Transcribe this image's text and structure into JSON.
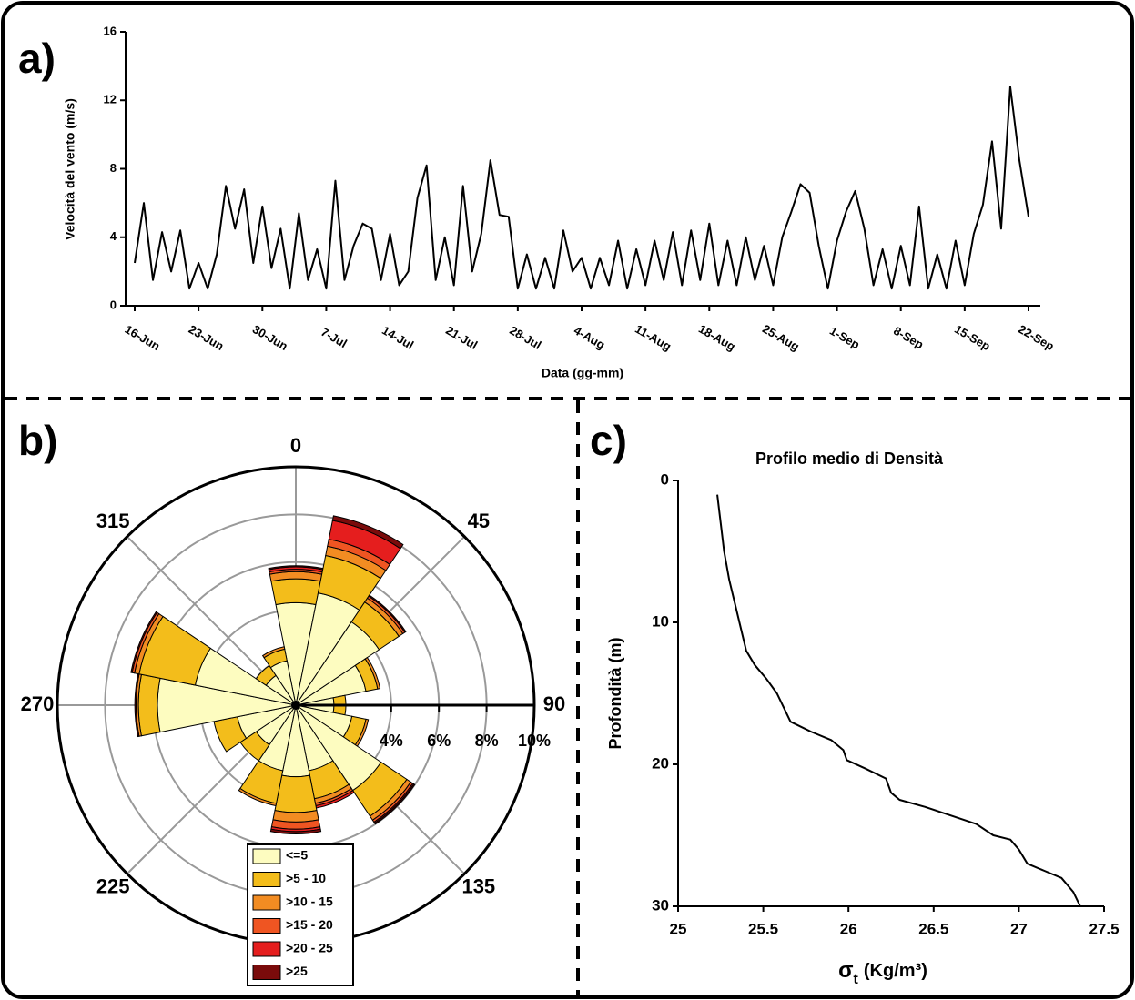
{
  "chart_data": [
    {
      "type": "line",
      "panel_label": "a)",
      "ylabel": "Velocità del vento (m/s)",
      "xlabel": "Data (gg-mm)",
      "color": "#000000",
      "x": [
        "16-Jun",
        "17-Jun",
        "18-Jun",
        "19-Jun",
        "20-Jun",
        "21-Jun",
        "22-Jun",
        "23-Jun",
        "24-Jun",
        "25-Jun",
        "26-Jun",
        "27-Jun",
        "28-Jun",
        "29-Jun",
        "30-Jun",
        "1-Jul",
        "2-Jul",
        "3-Jul",
        "4-Jul",
        "5-Jul",
        "6-Jul",
        "7-Jul",
        "8-Jul",
        "9-Jul",
        "10-Jul",
        "11-Jul",
        "12-Jul",
        "13-Jul",
        "14-Jul",
        "15-Jul",
        "16-Jul",
        "17-Jul",
        "18-Jul",
        "19-Jul",
        "20-Jul",
        "21-Jul",
        "22-Jul",
        "23-Jul",
        "24-Jul",
        "25-Jul",
        "26-Jul",
        "27-Jul",
        "28-Jul",
        "29-Jul",
        "30-Jul",
        "31-Jul",
        "1-Aug",
        "2-Aug",
        "3-Aug",
        "4-Aug",
        "5-Aug",
        "6-Aug",
        "7-Aug",
        "8-Aug",
        "9-Aug",
        "10-Aug",
        "11-Aug",
        "12-Aug",
        "13-Aug",
        "14-Aug",
        "15-Aug",
        "16-Aug",
        "17-Aug",
        "18-Aug",
        "19-Aug",
        "20-Aug",
        "21-Aug",
        "22-Aug",
        "23-Aug",
        "24-Aug",
        "25-Aug",
        "26-Aug",
        "27-Aug",
        "28-Aug",
        "29-Aug",
        "30-Aug",
        "31-Aug",
        "1-Sep",
        "2-Sep",
        "3-Sep",
        "4-Sep",
        "5-Sep",
        "6-Sep",
        "7-Sep",
        "8-Sep",
        "9-Sep",
        "10-Sep",
        "11-Sep",
        "12-Sep",
        "13-Sep",
        "14-Sep",
        "15-Sep",
        "16-Sep",
        "17-Sep",
        "18-Sep",
        "19-Sep",
        "20-Sep",
        "21-Sep",
        "22-Sep"
      ],
      "values": [
        2.5,
        6.0,
        1.5,
        4.3,
        2.0,
        4.4,
        1.0,
        2.5,
        1.0,
        3.0,
        7.0,
        4.5,
        6.8,
        2.5,
        5.8,
        2.2,
        4.5,
        1.0,
        5.4,
        1.5,
        3.3,
        1.0,
        7.3,
        1.5,
        3.5,
        4.8,
        4.5,
        1.5,
        4.2,
        1.2,
        2.0,
        6.3,
        8.2,
        1.5,
        4.0,
        1.2,
        7.0,
        2.0,
        4.2,
        8.5,
        5.3,
        5.2,
        1.0,
        3.0,
        1.0,
        2.8,
        1.0,
        4.4,
        2.0,
        2.8,
        1.0,
        2.8,
        1.2,
        3.8,
        1.0,
        3.3,
        1.2,
        3.8,
        1.5,
        4.3,
        1.2,
        4.4,
        1.5,
        4.8,
        1.2,
        3.8,
        1.2,
        4.0,
        1.5,
        3.5,
        1.2,
        4.0,
        5.5,
        7.1,
        6.6,
        3.5,
        1.0,
        3.8,
        5.5,
        6.7,
        4.5,
        1.2,
        3.3,
        1.0,
        3.5,
        1.2,
        5.8,
        1.0,
        3.0,
        1.0,
        3.8,
        1.2,
        4.2,
        5.9,
        9.6,
        4.5,
        12.8,
        8.5,
        5.2
      ],
      "xticks": [
        "16-Jun",
        "23-Jun",
        "30-Jun",
        "7-Jul",
        "14-Jul",
        "21-Jul",
        "28-Jul",
        "4-Aug",
        "11-Aug",
        "18-Aug",
        "25-Aug",
        "1-Sep",
        "8-Sep",
        "15-Sep",
        "22-Sep"
      ],
      "ylim": [
        0,
        16
      ],
      "yticks": [
        0,
        4,
        8,
        12,
        16
      ]
    },
    {
      "type": "windrose",
      "panel_label": "b)",
      "theta": [
        0,
        22.5,
        45,
        67.5,
        90,
        112.5,
        135,
        157.5,
        180,
        202.5,
        225,
        247.5,
        270,
        292.5,
        315,
        337.5
      ],
      "series": [
        {
          "name": "<=5",
          "color": "#fdfcc0",
          "values": [
            4.3,
            4.8,
            4.2,
            3.0,
            1.6,
            2.4,
            4.3,
            2.8,
            3.0,
            2.8,
            2.0,
            2.5,
            5.8,
            4.3,
            1.5,
            1.9
          ]
        },
        {
          "name": ">5 - 10",
          "color": "#f3bd1b",
          "values": [
            1.0,
            1.6,
            1.0,
            0.5,
            0.5,
            0.6,
            1.3,
            1.2,
            1.5,
            1.4,
            0.8,
            1.0,
            0.8,
            2.4,
            0.5,
            0.5
          ]
        },
        {
          "name": ">10 - 15",
          "color": "#f28c22",
          "values": [
            0.3,
            0.4,
            0.2,
            0.1,
            0,
            0.1,
            0.2,
            0.2,
            0.4,
            0.1,
            0,
            0,
            0.1,
            0.2,
            0,
            0.1
          ]
        },
        {
          "name": ">15 - 20",
          "color": "#ef5522",
          "values": [
            0.1,
            0.3,
            0.1,
            0,
            0,
            0,
            0.1,
            0.1,
            0.3,
            0,
            0,
            0,
            0,
            0.1,
            0,
            0
          ]
        },
        {
          "name": ">20 - 25",
          "color": "#e51e1e",
          "values": [
            0.1,
            0.8,
            0,
            0,
            0,
            0,
            0.05,
            0.1,
            0.1,
            0,
            0,
            0,
            0,
            0,
            0,
            0
          ]
        },
        {
          "name": ">25",
          "color": "#7a0b0b",
          "values": [
            0.05,
            0.2,
            0.05,
            0,
            0,
            0,
            0.05,
            0,
            0.1,
            0,
            0,
            0,
            0.05,
            0.05,
            0,
            0
          ]
        }
      ],
      "rlim": [
        0,
        10
      ],
      "rgrid": [
        2,
        4,
        6,
        8
      ],
      "rticks": [
        {
          "value": 4,
          "label": "4%"
        },
        {
          "value": 6,
          "label": "6%"
        },
        {
          "value": 8,
          "label": "8%"
        },
        {
          "value": 10,
          "label": "10%"
        }
      ],
      "thetaticks": [
        0,
        45,
        90,
        135,
        225,
        270,
        315
      ]
    },
    {
      "type": "line",
      "panel_label": "c)",
      "title": "Profilo medio di Densità",
      "ylabel": "Profondità (m)",
      "xlabel": {
        "symbol": "σ",
        "subscript": "t",
        "unit": "(Kg/m³)"
      },
      "color": "#000000",
      "x": [
        25.23,
        25.24,
        25.25,
        25.27,
        25.3,
        25.34,
        25.38,
        25.4,
        25.45,
        25.52,
        25.58,
        25.62,
        25.66,
        25.78,
        25.9,
        25.97,
        25.99,
        26.1,
        26.22,
        26.25,
        26.3,
        26.45,
        26.6,
        26.75,
        26.85,
        26.95,
        27.0,
        27.05,
        27.15,
        27.25,
        27.32,
        27.36
      ],
      "values": [
        1,
        2,
        3,
        5,
        7,
        9,
        11,
        12,
        13,
        14,
        15,
        16,
        17,
        17.7,
        18.3,
        19,
        19.7,
        20.3,
        21,
        22,
        22.5,
        23,
        23.6,
        24.2,
        25,
        25.3,
        26,
        27,
        27.5,
        28,
        29,
        30
      ],
      "xlim": [
        25,
        27.5
      ],
      "xticks": [
        25,
        25.5,
        26,
        26.5,
        27,
        27.5
      ],
      "ylim": [
        30,
        0
      ],
      "yticks": [
        0,
        10,
        20,
        30
      ]
    }
  ]
}
